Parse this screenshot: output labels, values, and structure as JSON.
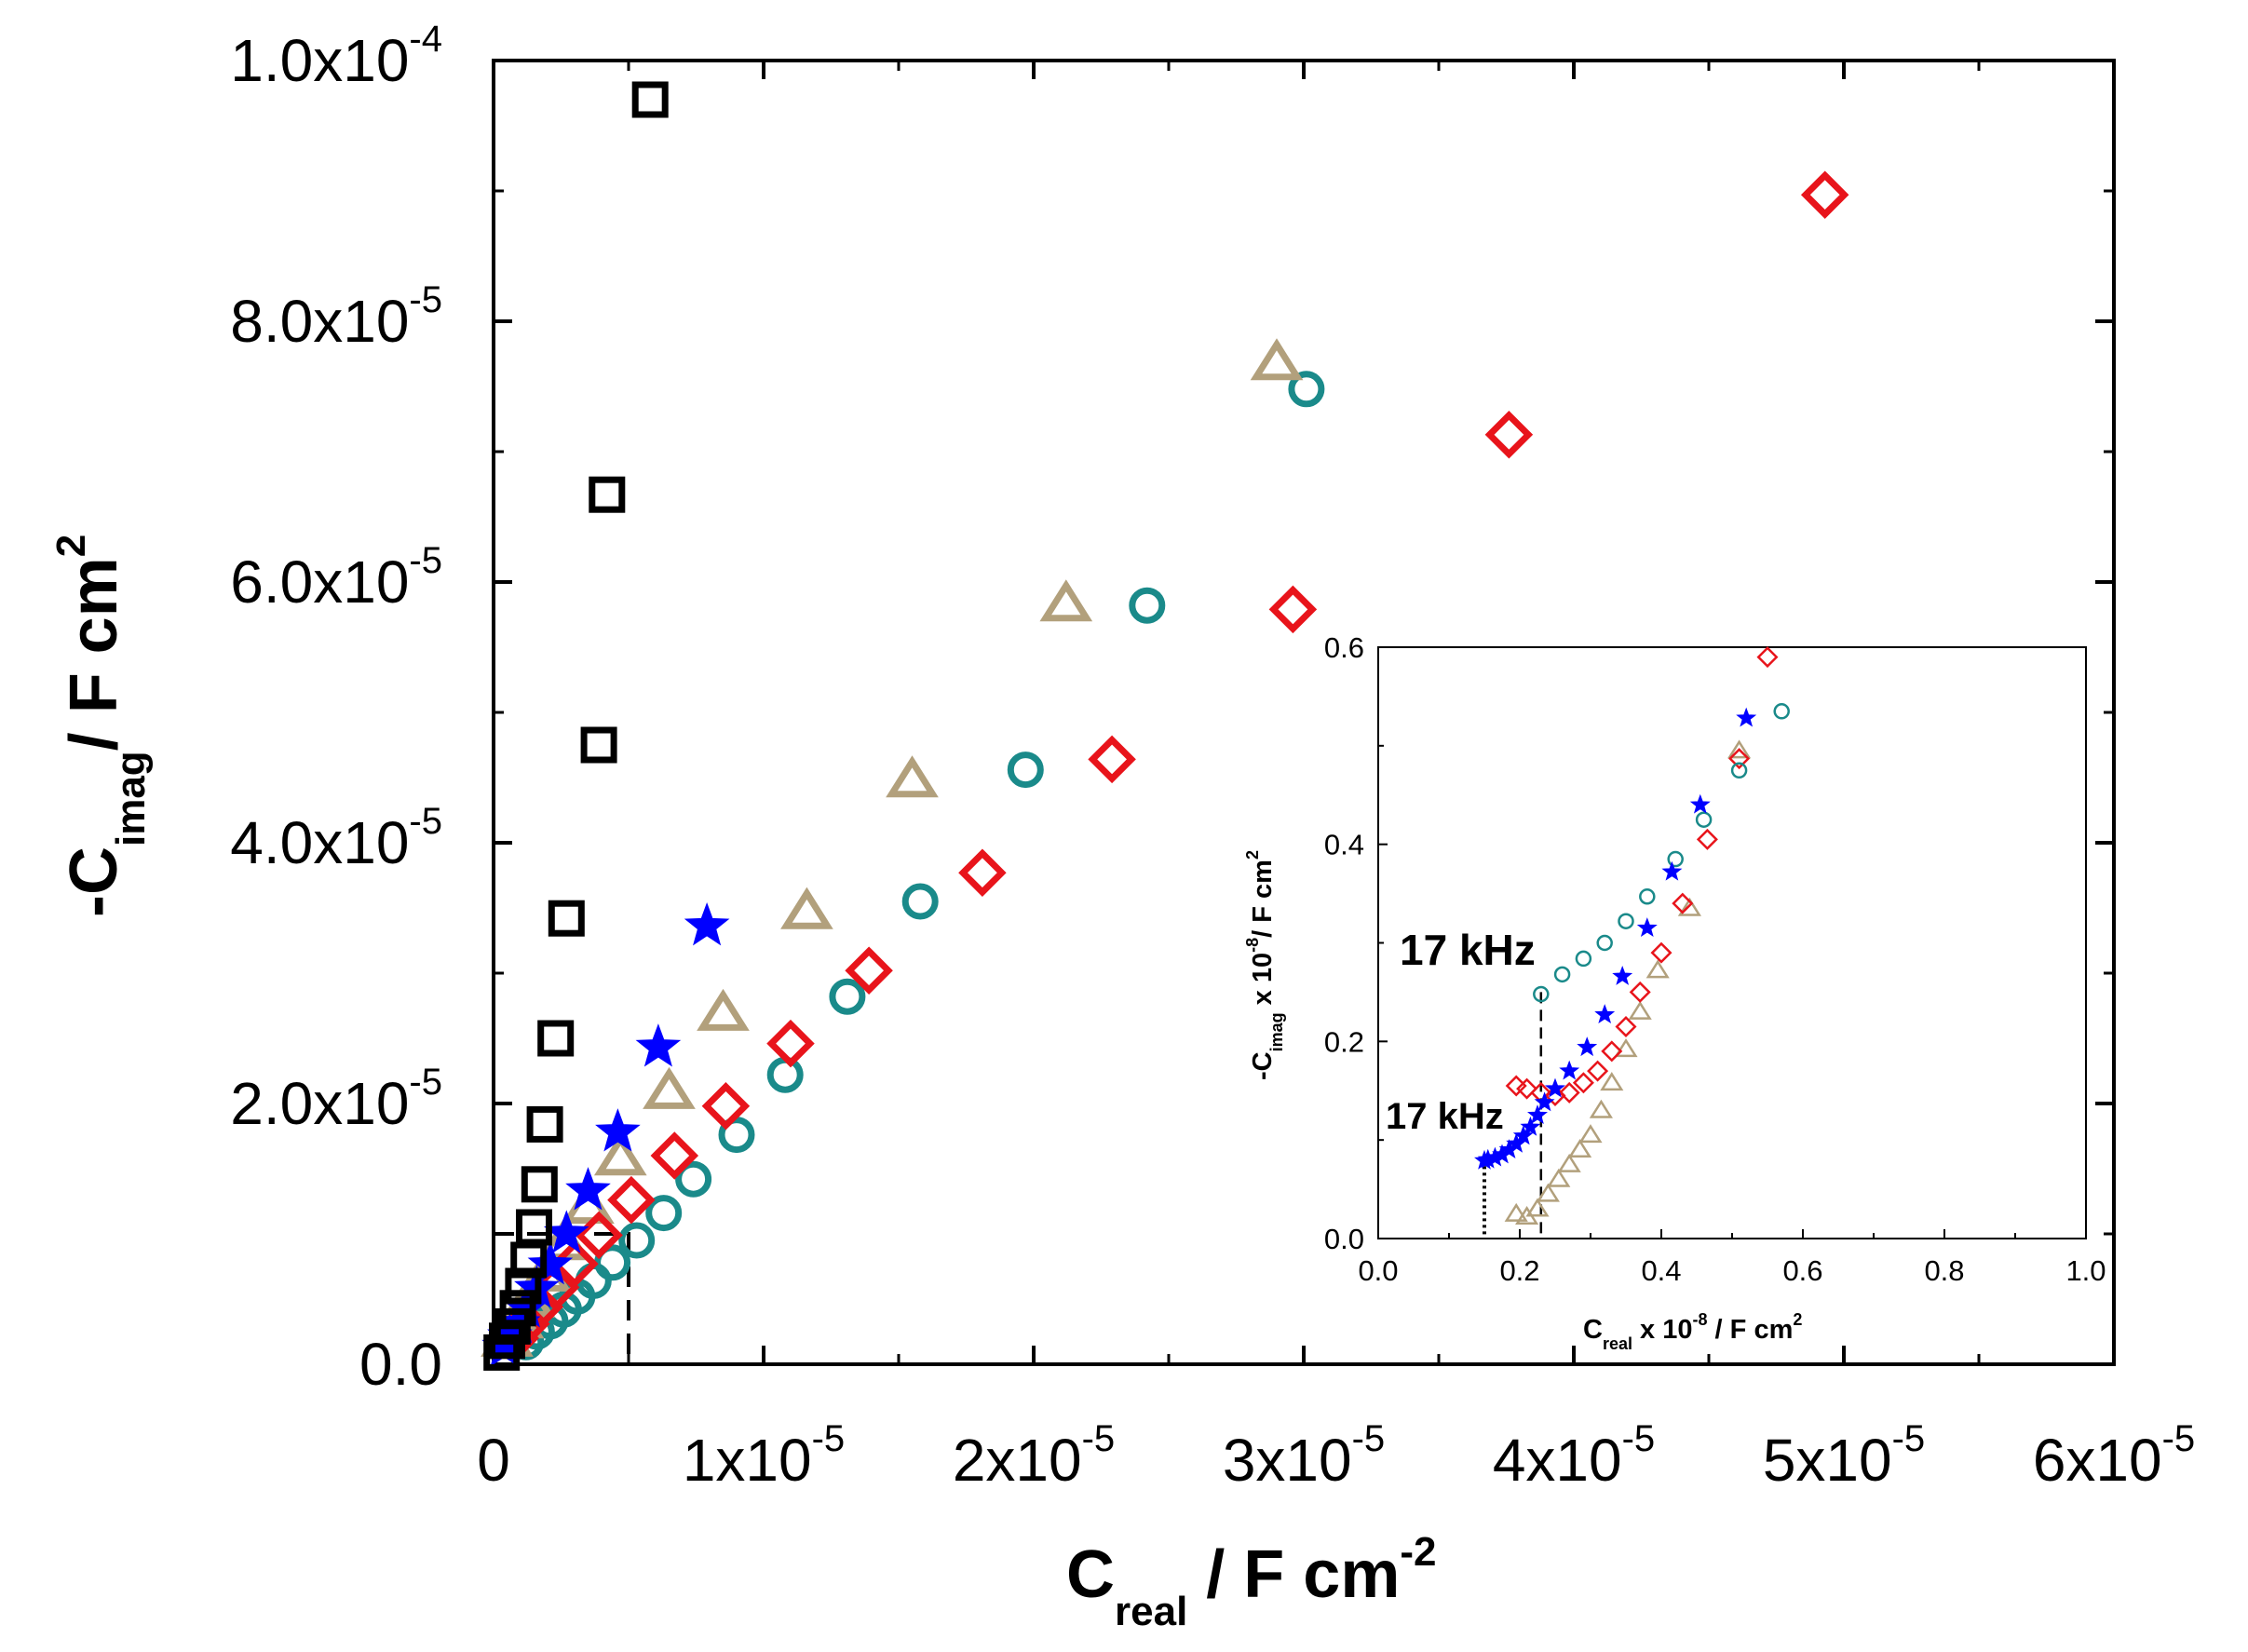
{
  "chart_data": [
    {
      "type": "scatter",
      "panel": "main",
      "xlabel": {
        "main": "C",
        "sub": "real",
        "rest": " / F cm",
        "sup": "-2"
      },
      "ylabel": {
        "main": "-C",
        "sub": "imag",
        "rest": "/ F cm",
        "sup": "2"
      },
      "xlim": [
        0,
        6e-05
      ],
      "ylim": [
        0,
        0.0001
      ],
      "grid": false,
      "x_ticks": [
        {
          "value": 0,
          "base": "0",
          "exp": ""
        },
        {
          "value": 1e-05,
          "base": "1x10",
          "exp": "-5"
        },
        {
          "value": 2e-05,
          "base": "2x10",
          "exp": "-5"
        },
        {
          "value": 3e-05,
          "base": "3x10",
          "exp": "-5"
        },
        {
          "value": 4e-05,
          "base": "4x10",
          "exp": "-5"
        },
        {
          "value": 5e-05,
          "base": "5x10",
          "exp": "-5"
        },
        {
          "value": 6e-05,
          "base": "6x10",
          "exp": "-5"
        }
      ],
      "y_ticks": [
        {
          "value": 0,
          "base": "0.0",
          "exp": ""
        },
        {
          "value": 2e-05,
          "base": "2.0x10",
          "exp": "-5"
        },
        {
          "value": 4e-05,
          "base": "4.0x10",
          "exp": "-5"
        },
        {
          "value": 6e-05,
          "base": "6.0x10",
          "exp": "-5"
        },
        {
          "value": 8e-05,
          "base": "8.0x10",
          "exp": "-5"
        },
        {
          "value": 0.0001,
          "base": "1.0x10",
          "exp": "-4"
        }
      ],
      "zoom_box": {
        "x": [
          0,
          5e-06
        ],
        "y": [
          0,
          1e-05
        ]
      },
      "series": [
        {
          "name": "black squares",
          "marker": "square",
          "color": "#000000",
          "x": [
            5.8e-06,
            4.2e-06,
            3.9e-06,
            2.7e-06,
            2.3e-06,
            1.9e-06,
            1.7e-06,
            1.5e-06,
            1.3e-06,
            1.1e-06,
            9e-07,
            7e-07,
            5e-07,
            3e-07
          ],
          "y": [
            9.7e-05,
            6.67e-05,
            4.75e-05,
            3.42e-05,
            2.5e-05,
            1.84e-05,
            1.38e-05,
            1.05e-05,
            8e-06,
            6e-06,
            4.3e-06,
            2.9e-06,
            1.8e-06,
            9e-07
          ]
        },
        {
          "name": "blue stars",
          "marker": "star",
          "color": "#0000ff",
          "x": [
            7.9e-06,
            6.1e-06,
            4.6e-06,
            3.5e-06,
            2.7e-06,
            2.1e-06,
            1.6e-06,
            1.2e-06,
            9e-07,
            6e-07,
            4e-07
          ],
          "y": [
            3.36e-05,
            2.43e-05,
            1.78e-05,
            1.33e-05,
            1e-05,
            7.6e-06,
            5.8e-06,
            4.3e-06,
            3.1e-06,
            2.1e-06,
            1.3e-06
          ]
        },
        {
          "name": "tan triangles",
          "marker": "triangle",
          "color": "#b2a07c",
          "x": [
            2.9e-05,
            2.12e-05,
            1.55e-05,
            1.16e-05,
            8.5e-06,
            6.5e-06,
            4.7e-06,
            3.5e-06,
            2.6e-06,
            1.9e-06,
            1.3e-06,
            9e-07,
            5e-07
          ],
          "y": [
            7.68e-05,
            5.83e-05,
            4.48e-05,
            3.47e-05,
            2.69e-05,
            2.09e-05,
            1.58e-05,
            1.21e-05,
            9.3e-06,
            6.9e-06,
            4.9e-06,
            3.3e-06,
            1.9e-06
          ]
        },
        {
          "name": "teal circles",
          "marker": "circle",
          "color": "#1a8a8a",
          "x": [
            3.01e-05,
            2.42e-05,
            1.97e-05,
            1.58e-05,
            1.31e-05,
            1.08e-05,
            9e-06,
            7.4e-06,
            6.3e-06,
            5.3e-06,
            4.4e-06,
            3.7e-06,
            3.1e-06,
            2.6e-06,
            2.1e-06,
            1.6e-06,
            1.2e-06
          ],
          "y": [
            7.48e-05,
            5.82e-05,
            4.56e-05,
            3.55e-05,
            2.82e-05,
            2.22e-05,
            1.76e-05,
            1.42e-05,
            1.16e-05,
            9.5e-06,
            7.8e-06,
            6.4e-06,
            5.2e-06,
            4.2e-06,
            3.3e-06,
            2.5e-06,
            1.7e-06
          ]
        },
        {
          "name": "red diamonds",
          "marker": "diamond",
          "color": "#e8141b",
          "x": [
            4.93e-05,
            3.76e-05,
            2.96e-05,
            2.29e-05,
            1.81e-05,
            1.39e-05,
            1.1e-05,
            8.6e-06,
            6.7e-06,
            5.1e-06,
            3.9e-06,
            3e-06,
            2.3e-06,
            1.7e-06,
            1.2e-06,
            8e-07
          ],
          "y": [
            8.97e-05,
            7.13e-05,
            5.79e-05,
            4.64e-05,
            3.77e-05,
            3.02e-05,
            2.46e-05,
            1.98e-05,
            1.6e-05,
            1.26e-05,
            9.9e-06,
            7.7e-06,
            5.9e-06,
            4.4e-06,
            3.1e-06,
            2e-06
          ]
        }
      ]
    },
    {
      "type": "scatter",
      "panel": "inset",
      "xlabel": {
        "main": "C",
        "sub": "real",
        "rest": " x 10",
        "sup": "-8",
        "rest2": " / F cm",
        "sup2": "2"
      },
      "ylabel": {
        "main": "-C",
        "sub": "imag",
        "rest": " x 10",
        "sup": "-8",
        "rest2": "/ F cm",
        "sup2": "2"
      },
      "xlim": [
        0,
        1.0
      ],
      "ylim": [
        0,
        0.6
      ],
      "grid": false,
      "x_ticks": [
        "0.0",
        "0.2",
        "0.4",
        "0.6",
        "0.8",
        "1.0"
      ],
      "y_ticks": [
        "0.0",
        "0.2",
        "0.4",
        "0.6"
      ],
      "annotations": [
        {
          "text": "17 kHz",
          "x": 0.23,
          "y": 0.25,
          "series": "teal circles"
        },
        {
          "text": "17 kHz",
          "x": 0.15,
          "y": 0.08,
          "series": "blue stars"
        }
      ],
      "series": [
        {
          "name": "teal circles",
          "marker": "circle",
          "color": "#1a8a8a",
          "x": [
            0.57,
            0.51,
            0.46,
            0.42,
            0.38,
            0.35,
            0.32,
            0.29,
            0.26,
            0.23
          ],
          "y": [
            0.535,
            0.475,
            0.425,
            0.385,
            0.347,
            0.322,
            0.3,
            0.284,
            0.268,
            0.248
          ]
        },
        {
          "name": "blue stars",
          "marker": "star",
          "color": "#0000ff",
          "x": [
            0.52,
            0.455,
            0.415,
            0.38,
            0.345,
            0.32,
            0.295,
            0.27,
            0.25,
            0.235,
            0.225,
            0.215,
            0.205,
            0.195,
            0.185,
            0.175,
            0.165,
            0.155,
            0.15
          ],
          "y": [
            0.528,
            0.44,
            0.372,
            0.315,
            0.266,
            0.227,
            0.194,
            0.17,
            0.152,
            0.138,
            0.125,
            0.113,
            0.104,
            0.096,
            0.09,
            0.085,
            0.082,
            0.08,
            0.079
          ]
        },
        {
          "name": "red diamonds",
          "marker": "diamond",
          "color": "#e8141b",
          "x": [
            0.55,
            0.51,
            0.465,
            0.43,
            0.4,
            0.37,
            0.35,
            0.33,
            0.31,
            0.29,
            0.27,
            0.25,
            0.23,
            0.21,
            0.195
          ],
          "y": [
            0.59,
            0.487,
            0.405,
            0.34,
            0.29,
            0.25,
            0.215,
            0.19,
            0.17,
            0.158,
            0.148,
            0.145,
            0.148,
            0.152,
            0.155
          ]
        },
        {
          "name": "tan triangles",
          "marker": "triangle",
          "color": "#b2a07c",
          "x": [
            0.51,
            0.44,
            0.395,
            0.37,
            0.35,
            0.33,
            0.315,
            0.3,
            0.285,
            0.27,
            0.255,
            0.24,
            0.225,
            0.21,
            0.195
          ],
          "y": [
            0.495,
            0.335,
            0.272,
            0.23,
            0.192,
            0.158,
            0.13,
            0.105,
            0.09,
            0.075,
            0.06,
            0.045,
            0.03,
            0.022,
            0.025
          ]
        }
      ]
    }
  ]
}
